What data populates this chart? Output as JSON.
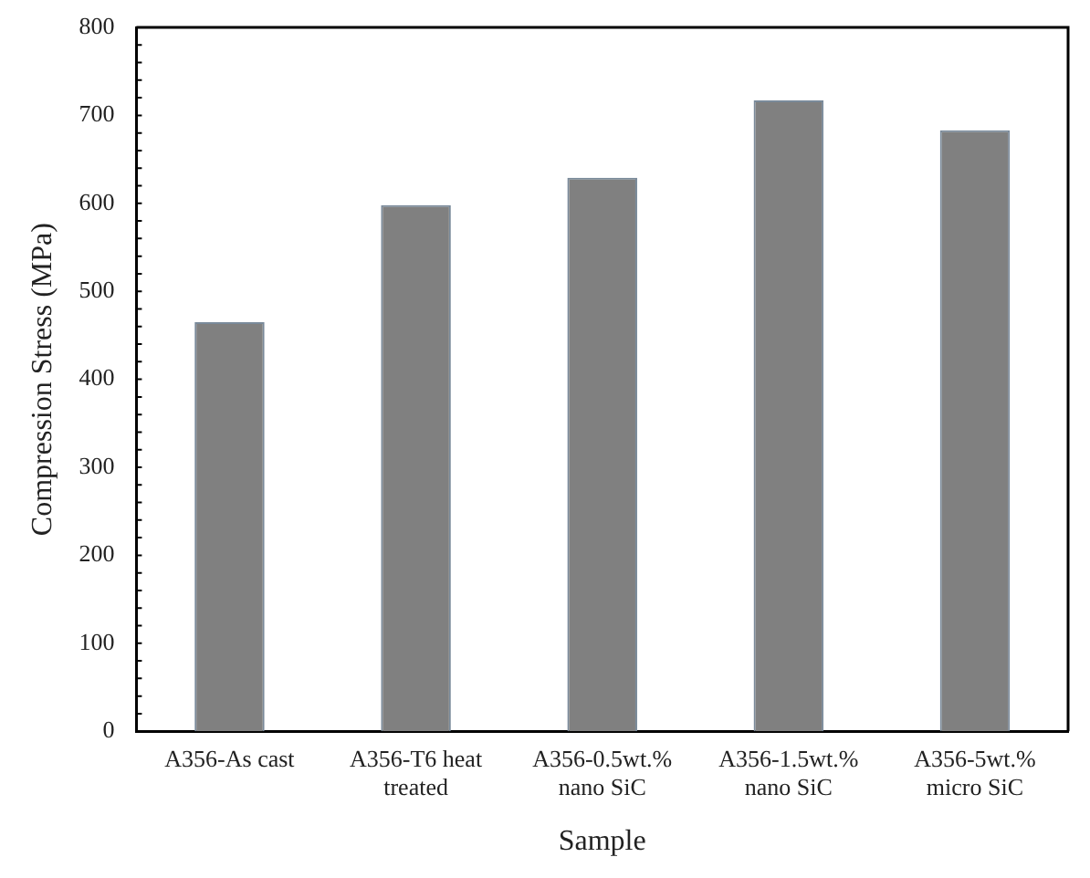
{
  "chart_data": {
    "type": "bar",
    "xlabel": "Sample",
    "ylabel": "Compression Stress (MPa)",
    "categories": [
      "A356-As cast",
      "A356-T6 heat treated",
      "A356-0.5wt.% nano SiC",
      "A356-1.5wt.% nano SiC",
      "A356-5wt.% micro SiC"
    ],
    "values": [
      465,
      598,
      629,
      717,
      683
    ],
    "color": "#808080",
    "ylim": [
      0,
      800
    ],
    "yticks": [
      0,
      100,
      200,
      300,
      400,
      500,
      600,
      700,
      800
    ],
    "grid": false,
    "legend": false
  }
}
